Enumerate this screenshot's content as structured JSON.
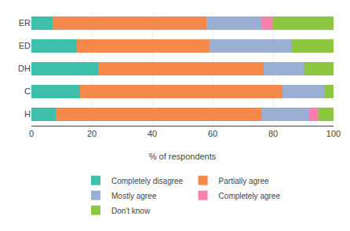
{
  "chart_data": {
    "type": "bar",
    "orientation": "horizontal",
    "stacked": true,
    "categories": [
      "H",
      "C",
      "DH",
      "ED",
      "ER"
    ],
    "series": [
      {
        "name": "Completely disagree",
        "color": "#3DBFAA",
        "values": [
          8,
          16,
          22,
          15,
          7
        ]
      },
      {
        "name": "Partially agree",
        "color": "#F5894B",
        "values": [
          68,
          67,
          55,
          44,
          51
        ]
      },
      {
        "name": "Mostly agree",
        "color": "#9BAED4",
        "values": [
          16,
          14,
          13,
          27,
          18
        ]
      },
      {
        "name": "Completely agree",
        "color": "#F97FAD",
        "values": [
          3,
          0,
          0,
          0,
          4
        ]
      },
      {
        "name": "Don't know",
        "color": "#8DC641",
        "values": [
          5,
          3,
          10,
          14,
          20
        ]
      }
    ],
    "xlabel": "% of respondents",
    "xlim": [
      0,
      100
    ],
    "xticks": [
      0,
      20,
      40,
      60,
      80,
      100
    ],
    "grid": true,
    "legend": "bottom"
  }
}
